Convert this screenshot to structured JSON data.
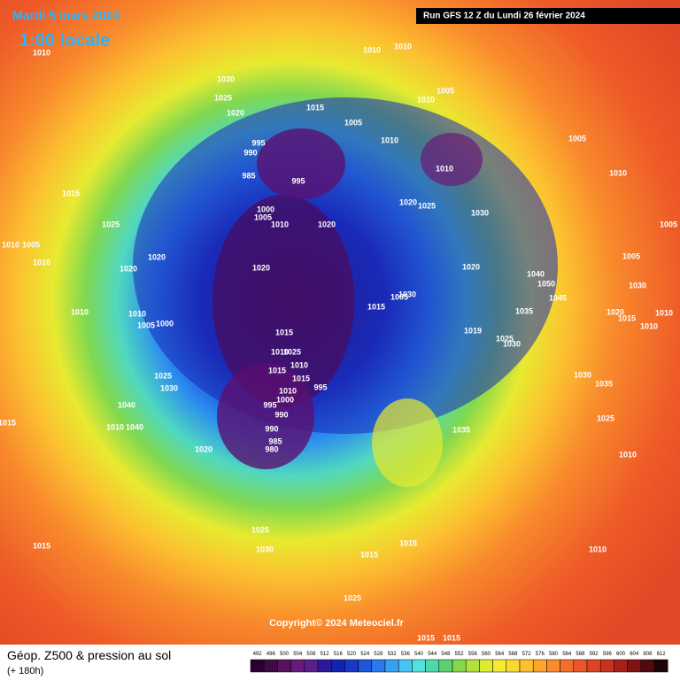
{
  "header": {
    "valid_date": "Mardi 5 mars 2024",
    "local_time": "1:00 locale",
    "run": "Run GFS 12 Z du Lundi 26 février 2024"
  },
  "map": {
    "copyright": "Copyright© 2024 Meteociel.fr",
    "pressure_labels": [
      "1010",
      "1010",
      "1010",
      "1030",
      "1025",
      "1020",
      "1015",
      "1005",
      "1010",
      "1005",
      "1010",
      "1005",
      "995",
      "990",
      "985",
      "995",
      "1010",
      "1010",
      "1015",
      "1020",
      "1025",
      "1030",
      "1000",
      "1005",
      "1010",
      "1020",
      "1025",
      "1005",
      "1010",
      "1005",
      "1010",
      "1020",
      "1020",
      "1020",
      "1020",
      "1005",
      "1040",
      "1050",
      "1030",
      "1045",
      "1030",
      "1005",
      "1015",
      "1010",
      "1010",
      "1005",
      "1000",
      "1035",
      "1020",
      "1015",
      "1010",
      "1010",
      "1015",
      "1019",
      "1025",
      "1030",
      "1010",
      "1025",
      "1015",
      "1010",
      "1015",
      "995",
      "1025",
      "1030",
      "1030",
      "1035",
      "1010",
      "1000",
      "995",
      "990",
      "1040",
      "1025",
      "1015",
      "1010",
      "1040",
      "1035",
      "990",
      "985",
      "980",
      "1020",
      "1010",
      "1025",
      "1030",
      "1015",
      "1015",
      "1015",
      "1010",
      "1025",
      "1015",
      "1015"
    ]
  },
  "footer": {
    "title": "Géop. Z500 & pression au sol",
    "lead": "(+ 180h)",
    "levels": [
      492,
      496,
      500,
      504,
      508,
      512,
      516,
      520,
      524,
      528,
      532,
      536,
      540,
      544,
      548,
      552,
      556,
      560,
      564,
      568,
      572,
      576,
      580,
      584,
      588,
      592,
      596,
      600,
      604,
      608,
      612
    ],
    "colors": [
      "#2a0030",
      "#3d0a45",
      "#55135e",
      "#6a1a78",
      "#5a1f8a",
      "#2a1a9a",
      "#1422b0",
      "#1838c8",
      "#1e55dd",
      "#2a7aee",
      "#36a0f5",
      "#46c5f5",
      "#55e0e0",
      "#4fd9a8",
      "#5ad070",
      "#82d84a",
      "#b2e23a",
      "#dcea30",
      "#f5ea30",
      "#fad830",
      "#fcc030",
      "#fca62e",
      "#fa8a2c",
      "#f46e2a",
      "#ec5628",
      "#e04224",
      "#c83020",
      "#a8201a",
      "#801414",
      "#500c0c",
      "#1a0606"
    ]
  }
}
